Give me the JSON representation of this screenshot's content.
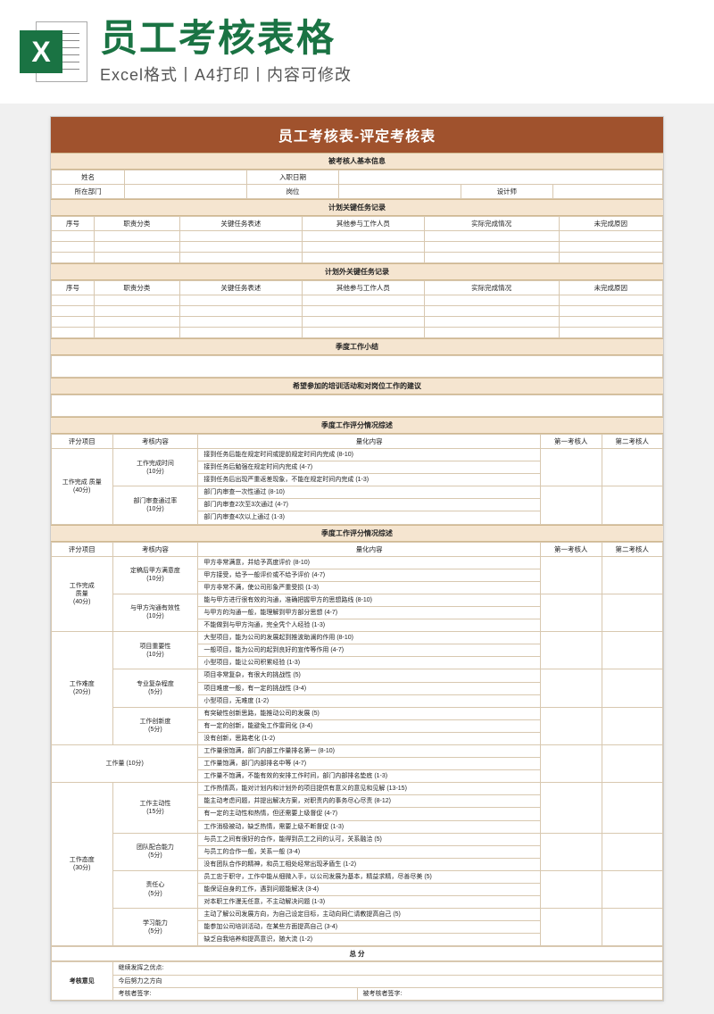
{
  "banner": {
    "title": "员工考核表格",
    "subtitle": "Excel格式丨A4打印丨内容可修改",
    "icon_letter": "X",
    "icon_bg": "#1a7343"
  },
  "doc": {
    "title": "员工考核表-评定考核表",
    "title_bg": "#a0522d",
    "section_bg": "#f5e5d0",
    "border_color": "#d8c8b0"
  },
  "basic": {
    "header": "被考核人基本信息",
    "name_lbl": "姓名",
    "hire_lbl": "入职日期",
    "dept_lbl": "所在部门",
    "post_lbl": "岗位",
    "post_val": "设计师"
  },
  "plan": {
    "header": "计划关键任务记录",
    "cols": [
      "序号",
      "职责分类",
      "关键任务表述",
      "其他参与工作人员",
      "实际完成情况",
      "未完成原因"
    ]
  },
  "unplan": {
    "header": "计划外关键任务记录",
    "cols": [
      "序号",
      "职责分类",
      "关键任务表述",
      "其他参与工作人员",
      "实际完成情况",
      "未完成原因"
    ]
  },
  "summary_header": "季度工作小结",
  "training_header": "希望参加的培训活动和对岗位工作的建议",
  "score1": {
    "header": "季度工作评分情况综述",
    "th": [
      "评分项目",
      "考核内容",
      "量化内容",
      "第一考核人",
      "第二考核人"
    ],
    "group1_title": "工作完成\n质量",
    "group1_pts": "(40分)",
    "rows": [
      {
        "sub": "工作完成时间",
        "pts": "(10分)",
        "lines": [
          "接到任务后能在规定时间或提前规定时间内完成 (8-10)",
          "接到任务后勉强在规定时间内完成 (4-7)",
          "接到任务后出现严重返差现象，不能在规定时间内完成 (1-3)"
        ]
      },
      {
        "sub": "部门审查通过率",
        "pts": "(10分)",
        "lines": [
          "部门内审查一次性通过 (8-10)",
          "部门内审查2次至3次通过 (4-7)",
          "部门内审查4次以上通过 (1-3)"
        ]
      }
    ]
  },
  "score2": {
    "header": "季度工作评分情况综述",
    "th": [
      "评分项目",
      "考核内容",
      "量化内容",
      "第一考核人",
      "第二考核人"
    ],
    "groups": [
      {
        "title": "工作完成\n质量",
        "pts": "(40分)",
        "subs": [
          {
            "name": "定稿后甲方满意度",
            "pts": "(10分)",
            "lines": [
              "甲方非常满意，并给予高度评价 (8-10)",
              "甲方接受，给予一般评价或不给予评价 (4-7)",
              "甲方非常不满，使公司形象严重受损 (1-3)"
            ]
          },
          {
            "name": "与甲方沟通有效性",
            "pts": "(10分)",
            "lines": [
              "能与甲方进行很有效的沟通，准确把握甲方的思想路线 (8-10)",
              "与甲方的沟通一般，能理解到甲方部分思想 (4-7)",
              "不能做到与甲方沟通，完全凭个人经验 (1-3)"
            ]
          }
        ]
      },
      {
        "title": "工作难度",
        "pts": "(20分)",
        "subs": [
          {
            "name": "项目重要性",
            "pts": "(10分)",
            "lines": [
              "大型项目，能为公司的发展起到推波助澜的作用 (8-10)",
              "一般项目，能为公司的起到良好的宣传等作用 (4-7)",
              "小型项目，能让公司积累经验 (1-3)"
            ]
          },
          {
            "name": "专业复杂程度",
            "pts": "(5分)",
            "lines": [
              "项目非常复杂，有很大的挑战性 (5)",
              "项目难度一般，有一定的挑战性 (3-4)",
              "小型项目，无难度 (1-2)"
            ]
          },
          {
            "name": "工作创新度",
            "pts": "(5分)",
            "lines": [
              "有突破性创新思路，能推动公司的发展 (5)",
              "有一定的创新，能避免工作雷同化 (3-4)",
              "没有创新，思路老化 (1-2)"
            ]
          }
        ]
      },
      {
        "title": "工作量",
        "pts": "(10分)",
        "single": true,
        "lines": [
          "工作量很饱满，部门内部工作量排名第一 (8-10)",
          "工作量饱满，部门内部排名中等 (4-7)",
          "工作量不饱满，不能有效的安排工作时间，部门内部排名垫底 (1-3)"
        ]
      },
      {
        "title": "工作态度",
        "pts": "(30分)",
        "subs": [
          {
            "name": "工作主动性",
            "pts": "(15分)",
            "lines": [
              "工作热情高，能对计划内和计划外的项目提供有意义的意见和见解 (13-15)",
              "能主动考虑问题，并提出解决方案，对职责内的事务尽心尽责 (8-12)",
              "有一定的主动性和热情，但还需要上级督促 (4-7)",
              "工作消极被动，缺乏热情，需要上级不断督促 (1-3)"
            ]
          },
          {
            "name": "团队配合能力",
            "pts": "(5分)",
            "lines": [
              "与员工之间有很好的合作，能得到员工之间的认可，关系融洽 (5)",
              "与员工的合作一般，关系一般 (3-4)",
              "没有团队合作的精神，和员工相处经常出现矛盾生 (1-2)"
            ]
          },
          {
            "name": "责任心",
            "pts": "(5分)",
            "lines": [
              "员工忠于职守，工作中能从细微入手，以公司发展为基本，精益求精，尽善尽美 (5)",
              "能保证自身的工作，遇到问题能解决 (3-4)",
              "对本职工作漫无任意，不主动解决问题 (1-3)"
            ]
          },
          {
            "name": "学习能力",
            "pts": "(5分)",
            "lines": [
              "主动了解公司发展方向，为自己设定目标，主动向同仁请教提高自己 (5)",
              "能参加公司培训活动，在某些方面提高自己 (3-4)",
              "缺乏自我培养和提高意识，随大流 (1-2)"
            ]
          }
        ]
      }
    ]
  },
  "total_lbl": "总 分",
  "opinion": {
    "lbl": "考核意见",
    "line1": "继续发挥之优点:",
    "line2": "今后努力之方向",
    "signer1": "考核者签字:",
    "signer2": "被考核者签字:"
  }
}
